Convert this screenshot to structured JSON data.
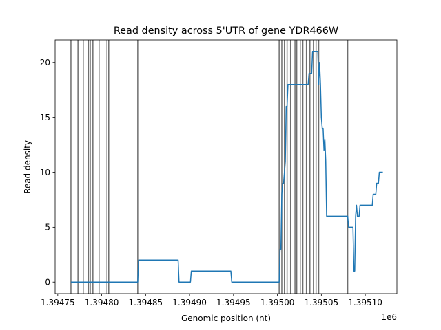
{
  "chart_data": {
    "type": "line",
    "title": "Read density across 5'UTR of gene YDR466W",
    "xlabel": "Genomic position (nt)",
    "ylabel": "Read density",
    "x_offset_label": "1e6",
    "xlim": [
      1.394747,
      1.395136
    ],
    "ylim": [
      -1.05,
      22.05
    ],
    "x_ticks": [
      1.39475,
      1.3948,
      1.39485,
      1.3949,
      1.39495,
      1.395,
      1.39505,
      1.3951
    ],
    "x_tick_labels": [
      "1.39475",
      "1.39480",
      "1.39485",
      "1.39490",
      "1.39495",
      "1.39500",
      "1.39505",
      "1.39510"
    ],
    "y_ticks": [
      0,
      5,
      10,
      15,
      20
    ],
    "y_tick_labels": [
      "0",
      "5",
      "10",
      "15",
      "20"
    ],
    "grid": false,
    "colors": {
      "line": "#1f77b4",
      "vlines": "#555555",
      "axes": "#000000"
    },
    "vertical_lines_x": [
      1.394765,
      1.394773,
      1.394779,
      1.394785,
      1.394787,
      1.39479,
      1.394797,
      1.394806,
      1.394808,
      1.394841,
      1.395002,
      1.395005,
      1.395008,
      1.395011,
      1.395015,
      1.39502,
      1.395022,
      1.395026,
      1.395029,
      1.395033,
      1.395037,
      1.395041,
      1.395044,
      1.395047,
      1.39508
    ],
    "series": [
      {
        "x": [
          1.394765,
          1.394841,
          1.394842,
          1.394887,
          1.394888,
          1.394901,
          1.394902,
          1.394947,
          1.394948,
          1.395002,
          1.395003,
          1.395004,
          1.395005,
          1.395006,
          1.395007,
          1.395009,
          1.39501,
          1.395011,
          1.395012,
          1.395014,
          1.395015,
          1.395035,
          1.395036,
          1.395039,
          1.39504,
          1.395046,
          1.395047,
          1.395048,
          1.395049,
          1.39505,
          1.395051,
          1.395052,
          1.395053,
          1.395054,
          1.395055,
          1.395056,
          1.395057,
          1.395058,
          1.395059,
          1.39508,
          1.395081,
          1.395086,
          1.395087,
          1.395088,
          1.395089,
          1.39509,
          1.395091,
          1.395092,
          1.395093,
          1.395094,
          1.395095,
          1.395096,
          1.395097,
          1.395108,
          1.395109,
          1.395112,
          1.395113,
          1.395115,
          1.395116,
          1.395118,
          1.39512
        ],
        "y": [
          0,
          0,
          2,
          2,
          0,
          0,
          1,
          1,
          0,
          0,
          3,
          3,
          8,
          9,
          9,
          11,
          16,
          16,
          18,
          18,
          18,
          18,
          19,
          19,
          21,
          21,
          18,
          20,
          18,
          15,
          14,
          14,
          12,
          13,
          11,
          6,
          6,
          6,
          6,
          6,
          5,
          5,
          1,
          1,
          6,
          7,
          6,
          6,
          6,
          7,
          7,
          7,
          7,
          7,
          8,
          8,
          9,
          9,
          10,
          10,
          10
        ]
      }
    ]
  }
}
